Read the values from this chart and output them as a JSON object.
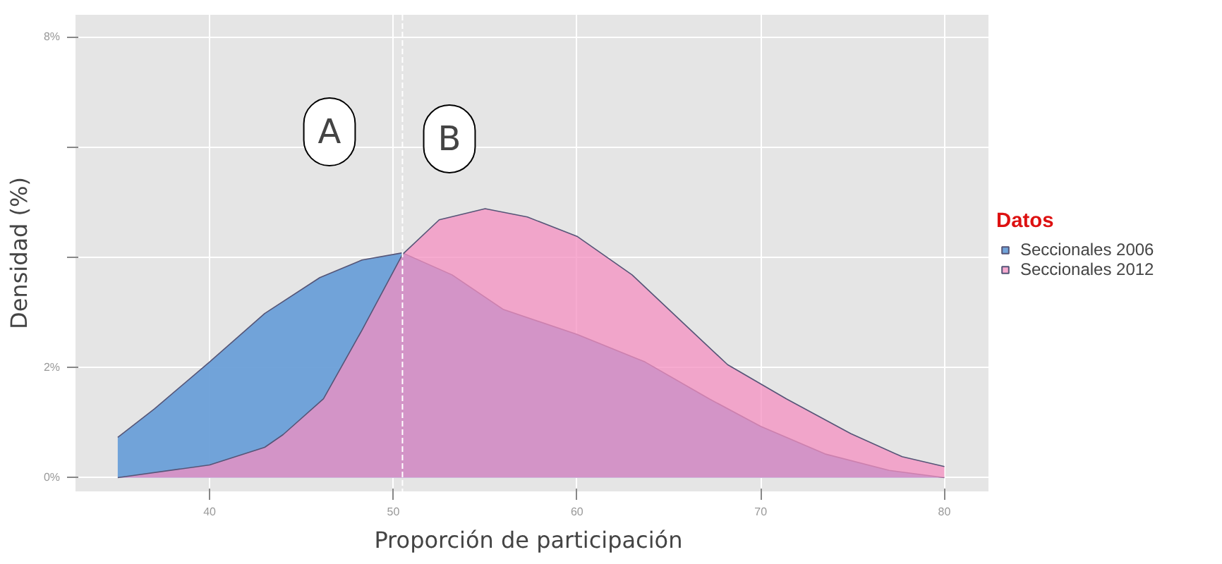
{
  "chart_data": {
    "type": "area",
    "xlabel": "Proporción de  participación",
    "ylabel": "Densidad (%)",
    "legend_title": "Datos",
    "legend": "right",
    "grid": true,
    "xlim": [
      32.7,
      82.4
    ],
    "ylim": [
      -0.25,
      8.4
    ],
    "xticks": [
      40,
      50,
      60,
      70,
      80
    ],
    "yticks": [
      {
        "value": 0,
        "label": "0%"
      },
      {
        "value": 2,
        "label": "2%"
      },
      {
        "value": 4,
        "label": null
      },
      {
        "value": 6,
        "label": null
      },
      {
        "value": 8,
        "label": "8%"
      }
    ],
    "series": [
      {
        "name": "Seccionales 2006",
        "color": "#6a9fd8",
        "x": [
          35,
          37,
          40,
          43,
          46,
          48.3,
          50.5,
          53.2,
          56,
          60,
          63.7,
          67.2,
          70,
          73.5,
          77,
          80
        ],
        "values": [
          0.73,
          1.25,
          2.1,
          2.98,
          3.63,
          3.95,
          4.08,
          3.68,
          3.05,
          2.6,
          2.1,
          1.43,
          0.93,
          0.43,
          0.13,
          0
        ]
      },
      {
        "name": "Seccionales 2012",
        "color": "#f48fc0",
        "x": [
          35,
          40,
          43,
          44,
          46.2,
          48.3,
          50.5,
          52.5,
          55,
          57.3,
          60,
          63,
          65.8,
          68.2,
          71.4,
          74.9,
          77.7,
          80
        ],
        "values": [
          0,
          0.23,
          0.55,
          0.78,
          1.43,
          2.68,
          4.05,
          4.68,
          4.88,
          4.73,
          4.38,
          3.68,
          2.8,
          2.05,
          1.43,
          0.8,
          0.38,
          0.2
        ]
      }
    ],
    "ref_lines": [
      {
        "axis": "x",
        "value": 50.5,
        "line_style": "dashed",
        "color": "#ffffff"
      }
    ],
    "annotations": [
      "A",
      "B"
    ]
  }
}
